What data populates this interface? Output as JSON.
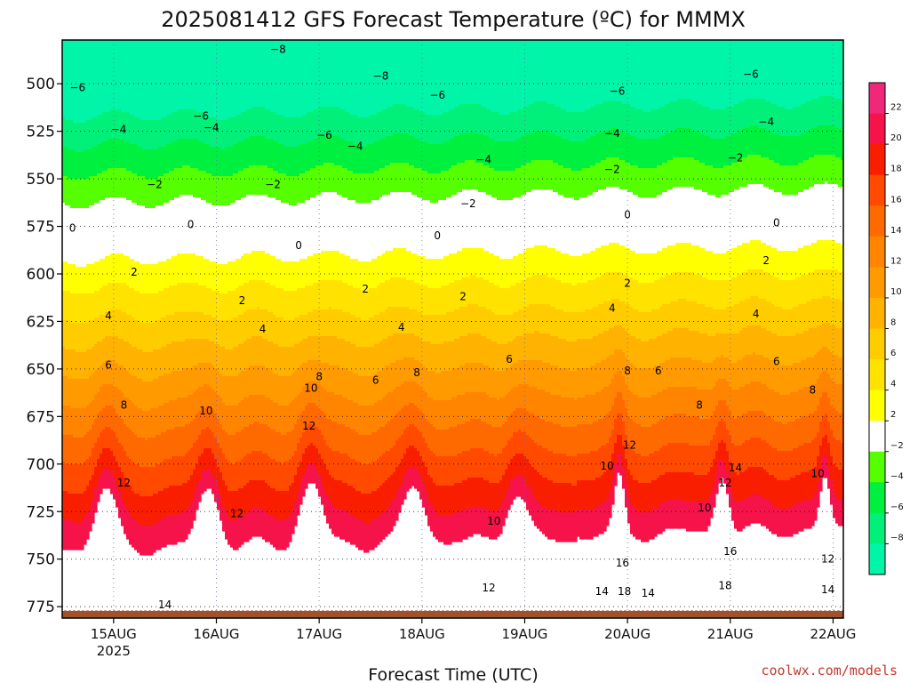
{
  "chart_data": {
    "type": "heatmap",
    "title": "2025081412 GFS Forecast Temperature (ºC) for MMMX",
    "xlabel": "Forecast Time (UTC)",
    "ylabel": "",
    "credit": "coolwx.com/models",
    "y_axis": {
      "reversed": true,
      "range": [
        781,
        477
      ],
      "ticks": [
        500,
        525,
        550,
        575,
        600,
        625,
        650,
        675,
        700,
        725,
        750,
        775
      ]
    },
    "x_axis": {
      "range_days": [
        0,
        7.6
      ],
      "ticks": [
        {
          "day": 0.5,
          "label": "15AUG",
          "sublabel": "2025"
        },
        {
          "day": 1.5,
          "label": "16AUG",
          "sublabel": ""
        },
        {
          "day": 2.5,
          "label": "17AUG",
          "sublabel": ""
        },
        {
          "day": 3.5,
          "label": "18AUG",
          "sublabel": ""
        },
        {
          "day": 4.5,
          "label": "19AUG",
          "sublabel": ""
        },
        {
          "day": 5.5,
          "label": "20AUG",
          "sublabel": ""
        },
        {
          "day": 6.5,
          "label": "21AUG",
          "sublabel": ""
        },
        {
          "day": 7.5,
          "label": "22AUG",
          "sublabel": ""
        }
      ]
    },
    "grid": true,
    "contour_interval": 2,
    "surface_pressure": 777,
    "colorbar": {
      "placement": "right",
      "levels": [
        {
          "label": "22",
          "from": 22,
          "to": 24,
          "color": "#f0287a"
        },
        {
          "label": "20",
          "from": 20,
          "to": 22,
          "color": "#f5134a"
        },
        {
          "label": "18",
          "from": 18,
          "to": 20,
          "color": "#fa1e00"
        },
        {
          "label": "16",
          "from": 16,
          "to": 18,
          "color": "#ff4a00"
        },
        {
          "label": "14",
          "from": 14,
          "to": 16,
          "color": "#ff6a00"
        },
        {
          "label": "12",
          "from": 12,
          "to": 14,
          "color": "#ff8500"
        },
        {
          "label": "10",
          "from": 10,
          "to": 12,
          "color": "#ff9a00"
        },
        {
          "label": "8",
          "from": 8,
          "to": 10,
          "color": "#ffb200"
        },
        {
          "label": "6",
          "from": 6,
          "to": 8,
          "color": "#ffcc00"
        },
        {
          "label": "4",
          "from": 4,
          "to": 6,
          "color": "#ffe200"
        },
        {
          "label": "2",
          "from": 2,
          "to": 4,
          "color": "#ffff00"
        },
        {
          "label": "−2",
          "from": -2,
          "to": 2,
          "color": "#ffffff"
        },
        {
          "label": "−4",
          "from": -4,
          "to": -2,
          "color": "#55ff00"
        },
        {
          "label": "−6",
          "from": -6,
          "to": -4,
          "color": "#00f040"
        },
        {
          "label": "−8",
          "from": -8,
          "to": -6,
          "color": "#00f07a"
        },
        {
          "label": "",
          "from": -10,
          "to": -8,
          "color": "#00f5a8"
        }
      ]
    },
    "contour_labels": [
      {
        "value": "−8",
        "day": 2.1,
        "p": 482
      },
      {
        "value": "−8",
        "day": 3.1,
        "p": 496
      },
      {
        "value": "−6",
        "day": 0.15,
        "p": 502
      },
      {
        "value": "−6",
        "day": 1.35,
        "p": 517
      },
      {
        "value": "−6",
        "day": 2.55,
        "p": 527
      },
      {
        "value": "−6",
        "day": 3.65,
        "p": 506
      },
      {
        "value": "−6",
        "day": 5.4,
        "p": 504
      },
      {
        "value": "−6",
        "day": 6.7,
        "p": 495
      },
      {
        "value": "−4",
        "day": 0.55,
        "p": 524
      },
      {
        "value": "−4",
        "day": 1.45,
        "p": 523
      },
      {
        "value": "−4",
        "day": 2.85,
        "p": 533
      },
      {
        "value": "−4",
        "day": 4.1,
        "p": 540
      },
      {
        "value": "−4",
        "day": 5.35,
        "p": 526
      },
      {
        "value": "−4",
        "day": 6.85,
        "p": 520
      },
      {
        "value": "−2",
        "day": 0.9,
        "p": 553
      },
      {
        "value": "−2",
        "day": 2.05,
        "p": 553
      },
      {
        "value": "−2",
        "day": 3.95,
        "p": 563
      },
      {
        "value": "−2",
        "day": 5.35,
        "p": 545
      },
      {
        "value": "−2",
        "day": 6.55,
        "p": 539
      },
      {
        "value": "0",
        "day": 0.1,
        "p": 576
      },
      {
        "value": "0",
        "day": 1.25,
        "p": 574
      },
      {
        "value": "0",
        "day": 2.3,
        "p": 585
      },
      {
        "value": "0",
        "day": 3.65,
        "p": 580
      },
      {
        "value": "0",
        "day": 5.5,
        "p": 569
      },
      {
        "value": "0",
        "day": 6.95,
        "p": 573
      },
      {
        "value": "2",
        "day": 0.7,
        "p": 599
      },
      {
        "value": "2",
        "day": 1.75,
        "p": 614
      },
      {
        "value": "2",
        "day": 2.95,
        "p": 608
      },
      {
        "value": "2",
        "day": 3.9,
        "p": 612
      },
      {
        "value": "2",
        "day": 5.5,
        "p": 605
      },
      {
        "value": "2",
        "day": 6.85,
        "p": 593
      },
      {
        "value": "4",
        "day": 0.45,
        "p": 622
      },
      {
        "value": "4",
        "day": 1.95,
        "p": 629
      },
      {
        "value": "4",
        "day": 3.3,
        "p": 628
      },
      {
        "value": "4",
        "day": 5.35,
        "p": 618
      },
      {
        "value": "4",
        "day": 6.75,
        "p": 621
      },
      {
        "value": "6",
        "day": 0.45,
        "p": 648
      },
      {
        "value": "6",
        "day": 3.05,
        "p": 656
      },
      {
        "value": "6",
        "day": 4.35,
        "p": 645
      },
      {
        "value": "6",
        "day": 5.8,
        "p": 651
      },
      {
        "value": "6",
        "day": 6.95,
        "p": 646
      },
      {
        "value": "8",
        "day": 0.6,
        "p": 669
      },
      {
        "value": "8",
        "day": 2.5,
        "p": 654
      },
      {
        "value": "8",
        "day": 3.45,
        "p": 652
      },
      {
        "value": "8",
        "day": 5.5,
        "p": 651
      },
      {
        "value": "8",
        "day": 6.2,
        "p": 669
      },
      {
        "value": "8",
        "day": 7.3,
        "p": 661
      },
      {
        "value": "10",
        "day": 1.4,
        "p": 672
      },
      {
        "value": "10",
        "day": 2.42,
        "p": 660
      },
      {
        "value": "10",
        "day": 4.2,
        "p": 730
      },
      {
        "value": "10",
        "day": 5.3,
        "p": 701
      },
      {
        "value": "10",
        "day": 6.25,
        "p": 723
      },
      {
        "value": "10",
        "day": 7.35,
        "p": 705
      },
      {
        "value": "12",
        "day": 0.6,
        "p": 710
      },
      {
        "value": "12",
        "day": 1.7,
        "p": 726
      },
      {
        "value": "12",
        "day": 2.4,
        "p": 680
      },
      {
        "value": "12",
        "day": 4.15,
        "p": 765
      },
      {
        "value": "12",
        "day": 5.52,
        "p": 690
      },
      {
        "value": "12",
        "day": 6.45,
        "p": 710
      },
      {
        "value": "12",
        "day": 7.45,
        "p": 750
      },
      {
        "value": "14",
        "day": 1.0,
        "p": 774
      },
      {
        "value": "14",
        "day": 5.25,
        "p": 767
      },
      {
        "value": "14",
        "day": 5.7,
        "p": 768
      },
      {
        "value": "14",
        "day": 6.55,
        "p": 702
      },
      {
        "value": "14",
        "day": 7.45,
        "p": 766
      },
      {
        "value": "16",
        "day": 5.45,
        "p": 752
      },
      {
        "value": "16",
        "day": 6.5,
        "p": 746
      },
      {
        "value": "18",
        "day": 5.47,
        "p": 767
      },
      {
        "value": "18",
        "day": 6.45,
        "p": 764
      }
    ]
  }
}
